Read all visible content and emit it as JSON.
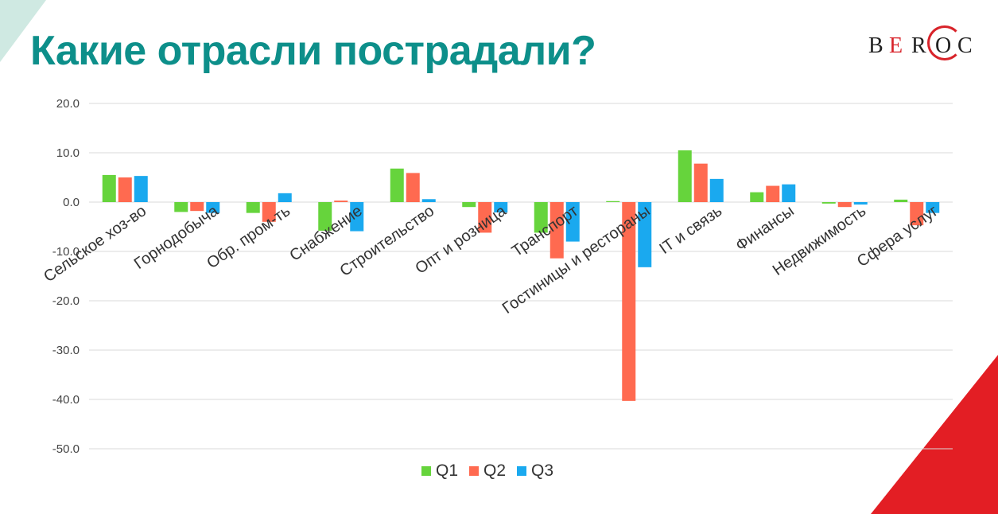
{
  "title": "Какие отрасли пострадали?",
  "logo": {
    "letters": [
      "B",
      "E",
      "R",
      "O",
      "C"
    ]
  },
  "colors": {
    "title": "#0d8f8a",
    "q1": "#66d43c",
    "q2": "#ff6a50",
    "q3": "#1aa9ef",
    "accent_red": "#e31e24",
    "accent_teal": "#cfe9e2"
  },
  "chart_data": {
    "type": "bar",
    "title": "",
    "categories": [
      "Сельское хоз-во",
      "Горнодобыча",
      "Обр. пром-ть",
      "Снабжение",
      "Строительство",
      "Опт и розница",
      "Транспорт",
      "Гостиницы и рестораны",
      "IT и связь",
      "Финансы",
      "Недвижимость",
      "Сфера услуг"
    ],
    "series": [
      {
        "name": "Q1",
        "values": [
          5.5,
          -2.0,
          -2.2,
          -5.8,
          6.8,
          -1.0,
          -6.2,
          0.2,
          10.5,
          2.0,
          -0.3,
          0.5
        ]
      },
      {
        "name": "Q2",
        "values": [
          5.0,
          -1.8,
          -4.0,
          0.3,
          5.9,
          -6.2,
          -11.4,
          -40.3,
          7.8,
          3.3,
          -1.0,
          -4.7
        ]
      },
      {
        "name": "Q3",
        "values": [
          5.3,
          -2.2,
          1.8,
          -5.9,
          0.6,
          -2.1,
          -8.0,
          -13.2,
          4.7,
          3.6,
          -0.5,
          -2.2
        ]
      }
    ],
    "yticks": [
      "20.0",
      "10.0",
      "0.0",
      "-10.0",
      "-20.0",
      "-30.0",
      "-40.0",
      "-50.0"
    ],
    "ylim": [
      -50,
      20
    ],
    "grid": true,
    "legend_position": "bottom"
  }
}
